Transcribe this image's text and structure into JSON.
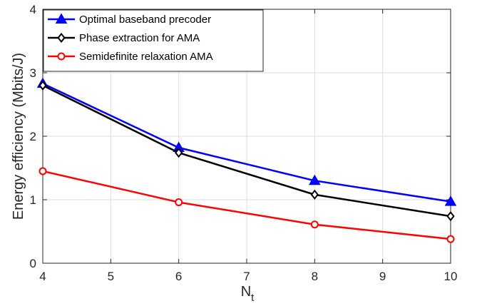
{
  "chart_data": {
    "type": "line",
    "title": "",
    "xlabel": "N",
    "xlabel_subscript": "t",
    "ylabel": "Energy efficiency (Mbits/J)",
    "x": [
      4,
      6,
      8,
      10
    ],
    "xlim": [
      4,
      10
    ],
    "ylim": [
      0,
      4
    ],
    "xticks": [
      "4",
      "5",
      "6",
      "7",
      "8",
      "9",
      "10"
    ],
    "yticks": [
      "0",
      "1",
      "2",
      "3",
      "4"
    ],
    "grid": true,
    "legend_position": "top-left",
    "series": [
      {
        "name": "Optimal baseband precoder",
        "values": [
          2.83,
          1.82,
          1.3,
          0.97
        ],
        "color": "#0000ff",
        "marker": "triangle"
      },
      {
        "name": "Phase extraction for AMA",
        "values": [
          2.8,
          1.74,
          1.08,
          0.74
        ],
        "color": "#000000",
        "marker": "diamond"
      },
      {
        "name": "Semidefinite relaxation AMA",
        "values": [
          1.45,
          0.96,
          0.61,
          0.38
        ],
        "color": "#ff0000",
        "marker": "circle"
      }
    ]
  }
}
